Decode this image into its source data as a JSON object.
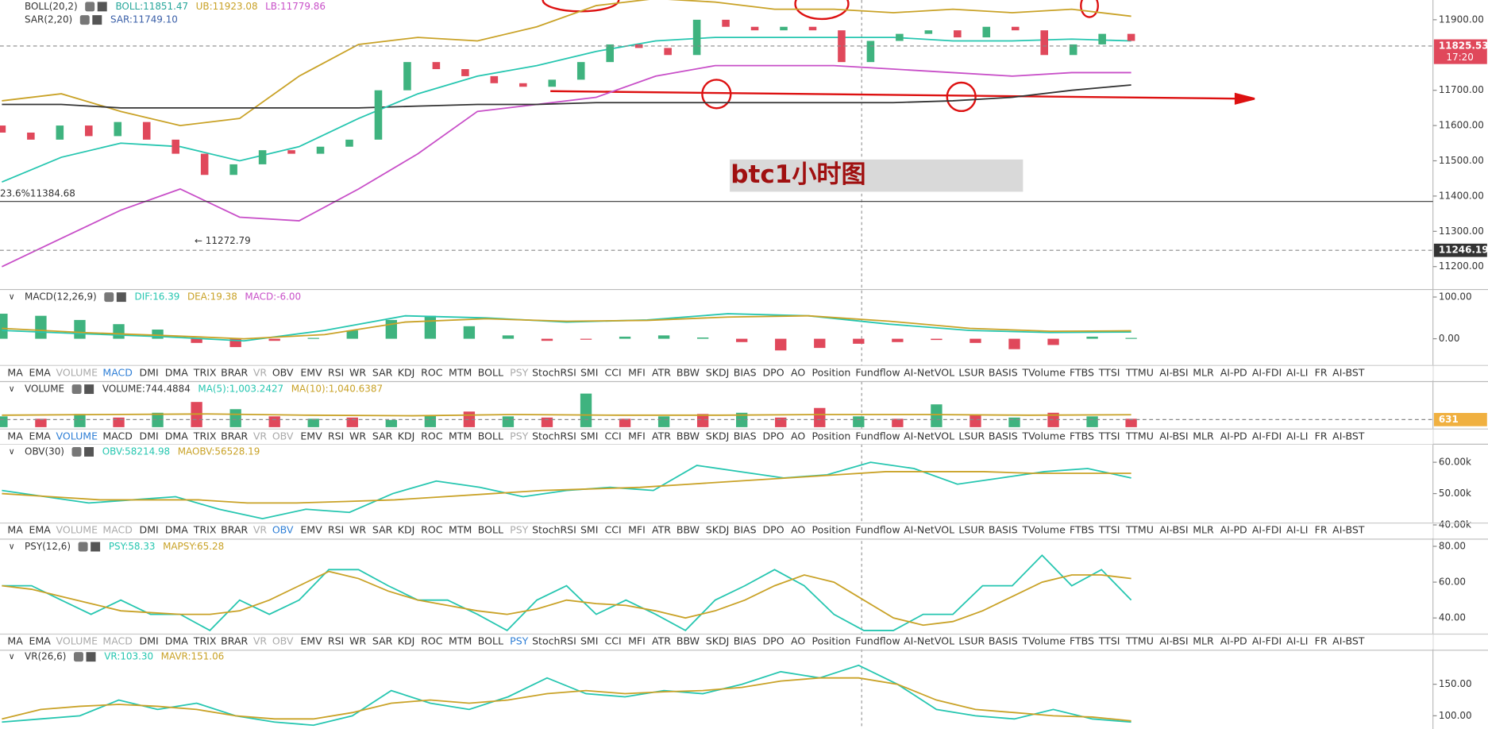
{
  "panes": [
    {
      "ylim": [
        11135,
        11956
      ],
      "legend": [
        [
          {
            "text": "BOLL(20,2)",
            "color": "#333"
          },
          {
            "text": "BOLL:11851.47",
            "color": "#26a69a"
          },
          {
            "text": "UB:11923.08",
            "color": "#c9a227"
          },
          {
            "text": "LB:11779.86",
            "color": "#c84fc8"
          }
        ],
        [
          {
            "text": "SAR(2,20)",
            "color": "#333"
          },
          {
            "text": "SAR:11749.10",
            "color": "#3a5fa8"
          }
        ]
      ],
      "yticks": [
        {
          "value": 11900,
          "label": "11900.00"
        },
        {
          "value": 11700,
          "label": "11700.00"
        },
        {
          "value": 11600,
          "label": "11600.00"
        },
        {
          "value": 11500,
          "label": "11500.00"
        },
        {
          "value": 11400,
          "label": "11400.00"
        },
        {
          "value": 11300,
          "label": "11300.00"
        },
        {
          "value": 11200,
          "label": "11200.00"
        }
      ],
      "series": [
        {
          "style": "line",
          "color": "#c9a227",
          "values": [
            11670,
            11690,
            11640,
            11600,
            11620,
            11740,
            11830,
            11850,
            11840,
            11880,
            11940,
            11960,
            11950,
            11930,
            11930,
            11920,
            11930,
            11920,
            11930,
            11910
          ]
        },
        {
          "style": "line",
          "color": "#c84fc8",
          "values": [
            11200,
            11280,
            11360,
            11420,
            11340,
            11330,
            11420,
            11520,
            11640,
            11660,
            11680,
            11740,
            11770,
            11770,
            11770,
            11760,
            11750,
            11740,
            11750,
            11750
          ]
        },
        {
          "style": "line",
          "color": "#333333",
          "values": [
            11660,
            11660,
            11650,
            11650,
            11650,
            11650,
            11650,
            11655,
            11660,
            11660,
            11665,
            11665,
            11665,
            11665,
            11665,
            11665,
            11670,
            11680,
            11700,
            11715
          ]
        },
        {
          "style": "line",
          "color": "#26c6b0",
          "values": [
            11440,
            11510,
            11550,
            11540,
            11500,
            11540,
            11620,
            11690,
            11740,
            11770,
            11810,
            11840,
            11850,
            11850,
            11850,
            11850,
            11840,
            11840,
            11845,
            11840
          ]
        },
        {
          "style": "candle",
          "up": "#3fb37f",
          "down": "#e0485b",
          "open": [
            11600,
            11580,
            11560,
            11600,
            11570,
            11610,
            11560,
            11520,
            11460,
            11490,
            11530,
            11520,
            11540,
            11560,
            11700,
            11780,
            11760,
            11740,
            11720,
            11710,
            11730,
            11780,
            11830,
            11820,
            11800,
            11900,
            11880,
            11870,
            11880,
            11870,
            11780,
            11840,
            11860,
            11870,
            11850,
            11880,
            11870,
            11800,
            11830,
            11860
          ],
          "close": [
            11580,
            11560,
            11600,
            11570,
            11610,
            11560,
            11520,
            11460,
            11490,
            11530,
            11520,
            11540,
            11560,
            11700,
            11780,
            11760,
            11740,
            11720,
            11710,
            11730,
            11780,
            11830,
            11820,
            11800,
            11900,
            11880,
            11870,
            11880,
            11870,
            11780,
            11840,
            11860,
            11870,
            11850,
            11880,
            11870,
            11800,
            11830,
            11860,
            11840
          ]
        }
      ],
      "price_labels": [
        {
          "value": 11825.53,
          "label": "11825.53",
          "time": "17:20",
          "color": "#e0485b"
        },
        {
          "value": 11246.19,
          "label": "11246.19",
          "color": "#333"
        }
      ],
      "notes": [
        {
          "value": 11384.68,
          "label": "23.6%11384.68"
        },
        {
          "value": 11272.79,
          "label": "← 11272.79"
        }
      ],
      "title": "btc1小时图"
    },
    {
      "ylim": [
        -64,
        118
      ],
      "legend": [
        [
          {
            "text": "MACD(12,26,9)",
            "color": "#333"
          },
          {
            "text": "DIF:16.39",
            "color": "#26c6b0"
          },
          {
            "text": "DEA:19.38",
            "color": "#c9a227"
          },
          {
            "text": "MACD:-6.00",
            "color": "#c84fc8"
          }
        ]
      ],
      "yticks": [
        {
          "value": 100,
          "label": "100.00"
        },
        {
          "value": 0,
          "label": "0.00"
        }
      ],
      "series": [
        {
          "style": "histogram",
          "up": "#3fb37f",
          "down": "#e0485b",
          "values": [
            60,
            55,
            45,
            35,
            22,
            -10,
            -20,
            -5,
            2,
            20,
            45,
            55,
            30,
            8,
            -5,
            -2,
            5,
            8,
            3,
            -8,
            -28,
            -22,
            -12,
            -8,
            -3,
            -10,
            -25,
            -15,
            5,
            2
          ]
        },
        {
          "style": "line",
          "color": "#26c6b0",
          "values": [
            20,
            12,
            5,
            -5,
            20,
            55,
            50,
            40,
            45,
            60,
            55,
            35,
            20,
            15,
            16
          ]
        },
        {
          "style": "line",
          "color": "#c9a227",
          "values": [
            25,
            15,
            8,
            0,
            10,
            40,
            48,
            42,
            44,
            52,
            55,
            42,
            25,
            18,
            19
          ]
        }
      ]
    },
    {
      "ylim": [
        0,
        3800
      ],
      "legend": [
        [
          {
            "text": "VOLUME",
            "color": "#333"
          },
          {
            "text": "VOLUME:744.4884",
            "color": "#333"
          },
          {
            "text": "MA(5):1,003.2427",
            "color": "#26c6b0"
          },
          {
            "text": "MA(10):1,040.6387",
            "color": "#c9a227"
          }
        ]
      ],
      "yticks": [],
      "series": [
        {
          "style": "volume",
          "up": "#3fb37f",
          "down": "#e0485b",
          "values": [
            900,
            700,
            1100,
            800,
            1200,
            2100,
            1500,
            900,
            700,
            800,
            600,
            1000,
            1300,
            900,
            800,
            2800,
            700,
            900,
            1100,
            1200,
            800,
            1600,
            900,
            700,
            1900,
            1000,
            800,
            1200,
            900,
            700
          ],
          "rising": [
            true,
            false,
            true,
            false,
            true,
            false,
            true,
            false,
            true,
            false,
            true,
            true,
            false,
            true,
            false,
            true,
            false,
            true,
            false,
            true,
            false,
            false,
            true,
            false,
            true,
            false,
            true,
            false,
            true,
            false
          ]
        },
        {
          "style": "line",
          "color": "#c9a227",
          "values": [
            1000,
            1050,
            1100,
            1000,
            950,
            1050,
            1000,
            1000,
            1050,
            1050,
            1000,
            1040
          ]
        }
      ],
      "price_labels": [
        {
          "value": 631,
          "label": "631",
          "color": "#f0b040"
        }
      ]
    },
    {
      "ylim": [
        40000,
        65760
      ],
      "legend": [
        [
          {
            "text": "OBV(30)",
            "color": "#333"
          },
          {
            "text": "OBV:58214.98",
            "color": "#26c6b0"
          },
          {
            "text": "MAOBV:56528.19",
            "color": "#c9a227"
          }
        ]
      ],
      "yticks": [
        {
          "value": 60000,
          "label": "60.00k"
        },
        {
          "value": 50000,
          "label": "50.00k"
        },
        {
          "value": 40000,
          "label": "40.00k"
        }
      ],
      "series": [
        {
          "style": "line",
          "color": "#26c6b0",
          "values": [
            51000,
            49000,
            47000,
            48000,
            49000,
            45000,
            42000,
            45000,
            44000,
            50000,
            54000,
            52000,
            49000,
            51000,
            52000,
            51000,
            59000,
            57000,
            55000,
            56000,
            60000,
            58000,
            53000,
            55000,
            57000,
            58000,
            55000
          ]
        },
        {
          "style": "line",
          "color": "#c9a227",
          "values": [
            50000,
            49000,
            48000,
            48000,
            48000,
            47000,
            47000,
            47500,
            48000,
            49000,
            50000,
            51000,
            51500,
            52000,
            53000,
            54000,
            55000,
            56000,
            57000,
            57000,
            57000,
            56500,
            56500,
            56500
          ]
        }
      ]
    },
    {
      "ylim": [
        31,
        84
      ],
      "legend": [
        [
          {
            "text": "PSY(12,6)",
            "color": "#333"
          },
          {
            "text": "PSY:58.33",
            "color": "#26c6b0"
          },
          {
            "text": "MAPSY:65.28",
            "color": "#c9a227"
          }
        ]
      ],
      "yticks": [
        {
          "value": 80,
          "label": "80.00"
        },
        {
          "value": 60,
          "label": "60.00"
        },
        {
          "value": 40,
          "label": "40.00"
        }
      ],
      "series": [
        {
          "style": "line",
          "color": "#26c6b0",
          "values": [
            58,
            58,
            50,
            42,
            50,
            42,
            42,
            33,
            50,
            42,
            50,
            67,
            67,
            58,
            50,
            50,
            42,
            33,
            50,
            58,
            42,
            50,
            42,
            33,
            50,
            58,
            67,
            58,
            42,
            33,
            33,
            42,
            42,
            58,
            58,
            75,
            58,
            67,
            50
          ]
        },
        {
          "style": "line",
          "color": "#c9a227",
          "values": [
            58,
            56,
            52,
            48,
            44,
            43,
            42,
            42,
            44,
            50,
            58,
            66,
            62,
            55,
            50,
            47,
            44,
            42,
            45,
            50,
            48,
            47,
            44,
            40,
            44,
            50,
            58,
            64,
            60,
            50,
            40,
            36,
            38,
            44,
            52,
            60,
            64,
            64,
            62
          ]
        }
      ]
    },
    {
      "ylim": [
        79,
        204
      ],
      "legend": [
        [
          {
            "text": "VR(26,6)",
            "color": "#333"
          },
          {
            "text": "VR:103.30",
            "color": "#26c6b0"
          },
          {
            "text": "MAVR:151.06",
            "color": "#c9a227"
          }
        ]
      ],
      "yticks": [
        {
          "value": 150,
          "label": "150.00"
        },
        {
          "value": 100,
          "label": "100.00"
        }
      ],
      "series": [
        {
          "style": "line",
          "color": "#26c6b0",
          "values": [
            90,
            95,
            100,
            125,
            110,
            120,
            100,
            90,
            85,
            100,
            140,
            120,
            110,
            130,
            160,
            135,
            130,
            140,
            135,
            150,
            170,
            160,
            180,
            150,
            110,
            100,
            95,
            110,
            95,
            90
          ]
        },
        {
          "style": "line",
          "color": "#c9a227",
          "values": [
            95,
            110,
            115,
            118,
            115,
            110,
            100,
            95,
            95,
            105,
            120,
            125,
            120,
            125,
            135,
            140,
            135,
            138,
            140,
            145,
            155,
            160,
            160,
            150,
            125,
            110,
            105,
            100,
            98,
            92
          ]
        }
      ]
    }
  ],
  "tabs": [
    "MA",
    "EMA",
    "VOLUME",
    "MACD",
    "DMI",
    "DMA",
    "TRIX",
    "BRAR",
    "VR",
    "OBV",
    "EMV",
    "RSI",
    "WR",
    "SAR",
    "KDJ",
    "ROC",
    "MTM",
    "BOLL",
    "PSY",
    "StochRSI",
    "SMI",
    "CCI",
    "MFI",
    "ATR",
    "BBW",
    "SKDJ",
    "BIAS",
    "DPO",
    "AO",
    "Position",
    "Fundflow",
    "AI-NetVOL",
    "LSUR",
    "BASIS",
    "TVolume",
    "FTBS",
    "TTSI",
    "TTMU",
    "AI-BSI",
    "MLR",
    "AI-PD",
    "AI-FDI",
    "AI-LI",
    "FR",
    "AI-BST"
  ],
  "tab_bars": [
    {
      "active": 3,
      "dimmed": [
        2,
        8,
        18
      ]
    },
    {
      "active": 2,
      "dimmed": [
        8,
        9,
        18
      ]
    },
    {
      "active": 9,
      "dimmed": [
        2,
        3,
        8,
        18
      ]
    },
    {
      "active": 18,
      "dimmed": [
        2,
        3,
        8,
        9
      ]
    }
  ]
}
